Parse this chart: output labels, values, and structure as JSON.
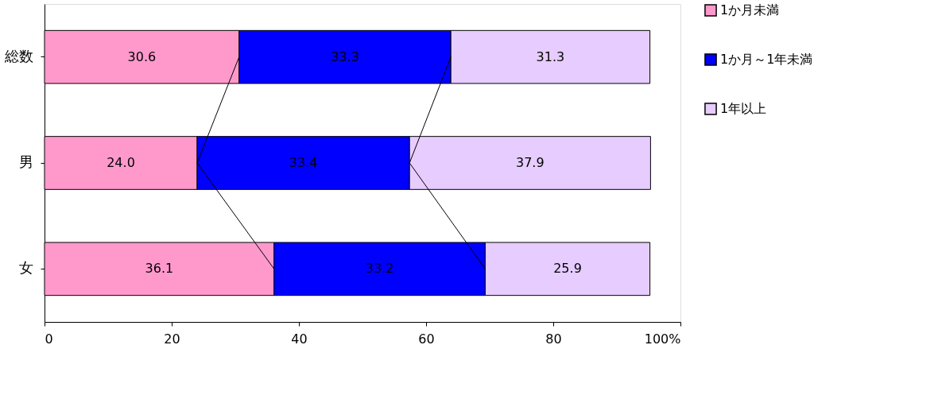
{
  "chart_data": {
    "type": "bar",
    "orientation": "horizontal",
    "stacked": true,
    "categories": [
      "総数",
      "男",
      "女"
    ],
    "series": [
      {
        "name": "1か月未満",
        "color": "#ff99cc",
        "values": [
          30.6,
          24.0,
          36.1
        ],
        "value_labels": [
          "30.6",
          "24.0",
          "36.1"
        ]
      },
      {
        "name": "1か月～1年未満",
        "color": "#0000ff",
        "values": [
          33.3,
          33.4,
          33.2
        ]
      },
      {
        "name": "1年以上",
        "color": "#e6ccff",
        "values": [
          31.3,
          37.9,
          25.9
        ]
      }
    ],
    "xlim": [
      0,
      100
    ],
    "xticks": [
      0,
      20,
      40,
      60,
      80,
      {
        "value": 100,
        "label": "100%"
      }
    ],
    "data_labels": true,
    "legend": "right",
    "grid": false
  }
}
